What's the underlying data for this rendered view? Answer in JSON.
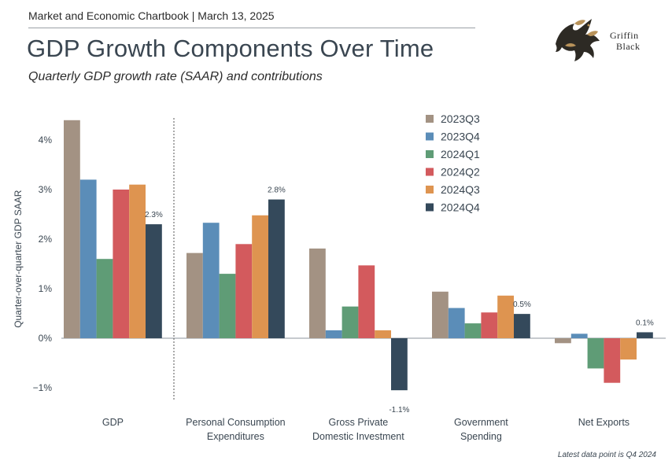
{
  "header": {
    "source_line": "Market and Economic Chartbook | March 13, 2025",
    "title": "GDP Growth Components Over Time",
    "subtitle": "Quarterly GDP growth rate (SAAR) and contributions"
  },
  "logo": {
    "line1": "Griffin",
    "line2": "Black",
    "icon": "griffin-icon"
  },
  "footnote": "Latest data point is Q4 2024",
  "colors": {
    "2023Q3": "#a39283",
    "2023Q4": "#5b8db8",
    "2024Q1": "#5f9c76",
    "2024Q2": "#d35a5d",
    "2024Q3": "#de9450",
    "2024Q4": "#34495b"
  },
  "chart_data": {
    "type": "bar",
    "ylabel": "Quarter-over-quarter GDP SAAR",
    "ylim": [
      -1.2,
      4.4
    ],
    "yticks": [
      -1,
      0,
      1,
      2,
      3,
      4
    ],
    "ytick_labels": [
      "−1%",
      "0%",
      "1%",
      "2%",
      "3%",
      "4%"
    ],
    "categories": [
      [
        "GDP"
      ],
      [
        "Personal Consumption",
        "Expenditures"
      ],
      [
        "Gross Private",
        "Domestic Investment"
      ],
      [
        "Government",
        "Spending"
      ],
      [
        "Net Exports"
      ]
    ],
    "legend_position": "top-right",
    "series": [
      {
        "name": "2023Q3",
        "values": [
          4.4,
          1.72,
          1.81,
          0.94,
          -0.1
        ]
      },
      {
        "name": "2023Q4",
        "values": [
          3.2,
          2.33,
          0.16,
          0.61,
          0.09
        ]
      },
      {
        "name": "2024Q1",
        "values": [
          1.6,
          1.3,
          0.64,
          0.3,
          -0.61
        ]
      },
      {
        "name": "2024Q2",
        "values": [
          3.0,
          1.9,
          1.47,
          0.52,
          -0.9
        ]
      },
      {
        "name": "2024Q3",
        "values": [
          3.1,
          2.48,
          0.16,
          0.86,
          -0.43
        ]
      },
      {
        "name": "2024Q4",
        "values": [
          2.3,
          2.8,
          -1.05,
          0.49,
          0.12
        ]
      }
    ],
    "data_labels": [
      {
        "category": 0,
        "series": 5,
        "text": "2.3%"
      },
      {
        "category": 1,
        "series": 5,
        "text": "2.8%"
      },
      {
        "category": 2,
        "series": 5,
        "text": "-1.1%"
      },
      {
        "category": 3,
        "series": 5,
        "text": "0.5%"
      },
      {
        "category": 4,
        "series": 5,
        "text": "0.1%"
      }
    ],
    "separator_after_category": 0
  }
}
